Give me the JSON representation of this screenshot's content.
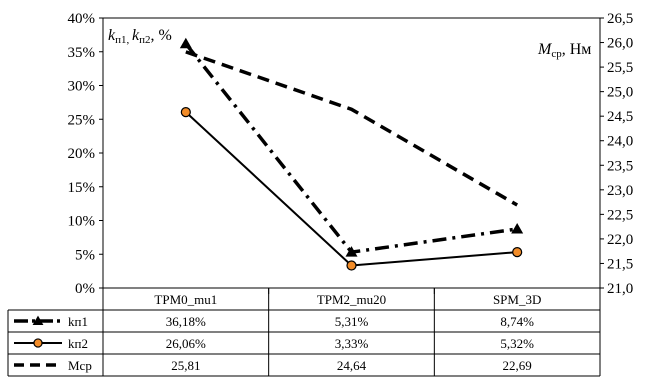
{
  "chart_data": {
    "type": "line",
    "categories": [
      "TPM0_mu1",
      "TPM2_mu20",
      "SPM_3D"
    ],
    "left_axis": {
      "ylim": [
        0,
        40
      ],
      "ticks": [
        0,
        5,
        10,
        15,
        20,
        25,
        30,
        35,
        40
      ],
      "tick_labels": [
        "0%",
        "5%",
        "10%",
        "15%",
        "20%",
        "25%",
        "30%",
        "35%",
        "40%"
      ],
      "label": {
        "k1": "k",
        "s1": "п1, ",
        "k2": "k",
        "s2": "п2",
        "suffix": ", %"
      }
    },
    "right_axis": {
      "ylim": [
        21.0,
        26.5
      ],
      "ticks": [
        21.0,
        21.5,
        22.0,
        22.5,
        23.0,
        23.5,
        24.0,
        24.5,
        25.0,
        25.5,
        26.0,
        26.5
      ],
      "tick_labels": [
        "21,0",
        "21,5",
        "22,0",
        "22,5",
        "23,0",
        "23,5",
        "24,0",
        "24,5",
        "25,0",
        "25,5",
        "26,0",
        "26,5"
      ],
      "label": {
        "m": "M",
        "sub": "ср",
        "suffix": ", Нм"
      }
    },
    "series": [
      {
        "name": "kп1",
        "axis": "left",
        "values": [
          36.18,
          5.31,
          8.74
        ],
        "labels": [
          "36,18%",
          "5,31%",
          "8,74%"
        ],
        "style": "dash-dot",
        "marker": "triangle"
      },
      {
        "name": "kп2",
        "axis": "left",
        "values": [
          26.06,
          3.33,
          5.32
        ],
        "labels": [
          "26,06%",
          "3,33%",
          "5,32%"
        ],
        "style": "solid",
        "marker": "circle"
      },
      {
        "name": "Мср",
        "axis": "right",
        "values": [
          25.81,
          24.64,
          22.69
        ],
        "labels": [
          "25,81",
          "24,64",
          "22,69"
        ],
        "style": "dashed",
        "marker": "none"
      }
    ],
    "legend": "data-table-below",
    "grid": false,
    "colors": {
      "line": "#000000",
      "marker_fill": "#f28c28",
      "border": "#000000"
    }
  }
}
